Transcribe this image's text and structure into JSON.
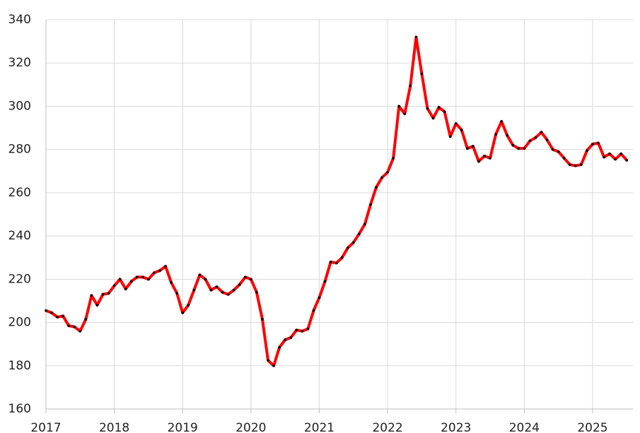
{
  "chart_data": {
    "type": "line",
    "x": [
      2017.0,
      2017.083,
      2017.167,
      2017.25,
      2017.333,
      2017.417,
      2017.5,
      2017.583,
      2017.667,
      2017.75,
      2017.833,
      2017.917,
      2018.0,
      2018.083,
      2018.167,
      2018.25,
      2018.333,
      2018.417,
      2018.5,
      2018.583,
      2018.667,
      2018.75,
      2018.833,
      2018.917,
      2019.0,
      2019.083,
      2019.167,
      2019.25,
      2019.333,
      2019.417,
      2019.5,
      2019.583,
      2019.667,
      2019.75,
      2019.833,
      2019.917,
      2020.0,
      2020.083,
      2020.167,
      2020.25,
      2020.333,
      2020.417,
      2020.5,
      2020.583,
      2020.667,
      2020.75,
      2020.833,
      2020.917,
      2021.0,
      2021.083,
      2021.167,
      2021.25,
      2021.333,
      2021.417,
      2021.5,
      2021.583,
      2021.667,
      2021.75,
      2021.833,
      2021.917,
      2022.0,
      2022.083,
      2022.167,
      2022.25,
      2022.333,
      2022.417,
      2022.5,
      2022.583,
      2022.667,
      2022.75,
      2022.833,
      2022.917,
      2023.0,
      2023.083,
      2023.167,
      2023.25,
      2023.333,
      2023.417,
      2023.5,
      2023.583,
      2023.667,
      2023.75,
      2023.833,
      2023.917,
      2024.0,
      2024.083,
      2024.167,
      2024.25,
      2024.333,
      2024.417,
      2024.5,
      2024.583,
      2024.667,
      2024.75,
      2024.833,
      2024.917,
      2025.0,
      2025.083,
      2025.167,
      2025.25,
      2025.333,
      2025.417,
      2025.5
    ],
    "series": [
      {
        "color": "#ff0000",
        "marker_color": "#000000",
        "values": [
          205.5,
          204.5,
          202.5,
          203,
          198.5,
          198,
          196,
          201.5,
          212.5,
          208,
          213,
          213.5,
          217,
          220,
          215.5,
          219,
          221,
          221,
          220,
          223,
          224,
          226,
          218.5,
          213.5,
          204.5,
          208,
          215,
          222,
          220,
          215,
          216.5,
          214,
          213,
          215,
          217.5,
          221,
          220,
          214,
          201.5,
          182.5,
          180,
          188.5,
          192,
          193,
          196.5,
          196,
          197,
          205.5,
          211.5,
          219,
          228,
          227.5,
          230,
          234.5,
          237,
          241,
          245.5,
          254.5,
          262.5,
          267,
          269.5,
          276,
          300,
          296.5,
          309.5,
          332,
          315,
          299,
          294.5,
          299.5,
          297.5,
          286,
          292,
          289,
          280.5,
          281.5,
          274.5,
          277,
          276,
          287,
          293,
          286.5,
          282,
          280.5,
          280.5,
          284,
          285.5,
          288,
          284.5,
          280,
          279,
          276,
          273,
          272.5,
          273,
          279.5,
          282.5,
          283,
          276.5,
          278,
          275.5,
          278,
          275
        ]
      }
    ],
    "xlim": [
      2017,
      2025.59
    ],
    "xticks": [
      2017,
      2018,
      2019,
      2020,
      2021,
      2022,
      2023,
      2024,
      2025
    ],
    "ylim": [
      160,
      340
    ],
    "yticks": [
      160,
      180,
      200,
      220,
      240,
      260,
      280,
      300,
      320,
      340
    ],
    "grid": true
  }
}
